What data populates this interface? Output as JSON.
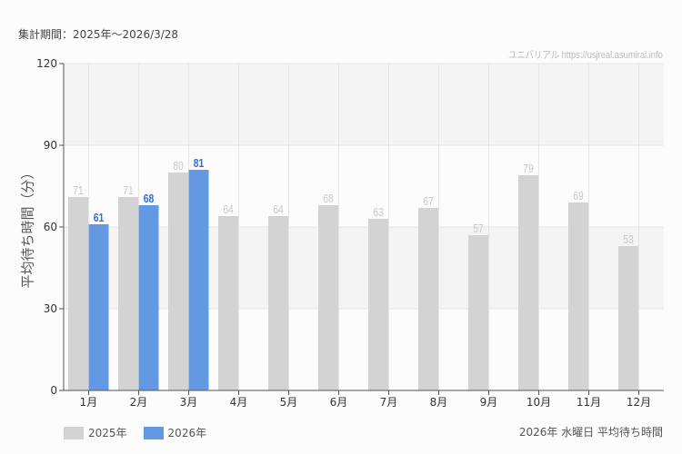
{
  "header": {
    "period_label": "集計期間：2025年～2026/3/28",
    "credit": "ユニバリアル  https://usjreal.asumirai.info"
  },
  "footer": {
    "subtitle": "2026年 水曜日 平均待ち時間"
  },
  "colors": {
    "series_2025": "#d3d3d3",
    "series_2026": "#6399e3",
    "label_2025": "#c8c8c8",
    "label_2026": "#2e6fcf",
    "band": "#f4f4f4",
    "grid": "#e6e6e6",
    "axis": "#555555"
  },
  "chart_data": {
    "type": "bar",
    "title": "2026年 水曜日 平均待ち時間",
    "subtitle": "集計期間：2025年～2026/3/28",
    "xlabel": "",
    "ylabel": "平均待ち時間（分）",
    "ylim": [
      0,
      120
    ],
    "yticks": [
      0,
      30,
      60,
      90,
      120
    ],
    "grid": true,
    "legend_position": "bottom-left",
    "categories": [
      "1月",
      "2月",
      "3月",
      "4月",
      "5月",
      "6月",
      "7月",
      "8月",
      "9月",
      "10月",
      "11月",
      "12月"
    ],
    "series": [
      {
        "name": "2025年",
        "values": [
          71,
          71,
          80,
          64,
          64,
          68,
          63,
          67,
          57,
          79,
          69,
          53
        ]
      },
      {
        "name": "2026年",
        "values": [
          61,
          68,
          81,
          null,
          null,
          null,
          null,
          null,
          null,
          null,
          null,
          null
        ]
      }
    ]
  }
}
